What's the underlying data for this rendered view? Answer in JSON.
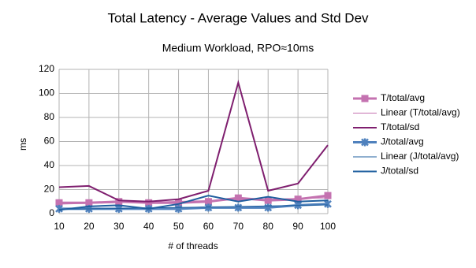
{
  "chart_data": {
    "type": "line",
    "title": "Total Latency - Average Values and Std Dev",
    "subtitle": "Medium Workload, RPO≈10ms",
    "x_label": "# of threads",
    "y_label": "ms",
    "x": [
      10,
      20,
      30,
      40,
      50,
      60,
      70,
      80,
      90,
      100
    ],
    "xlim": [
      10,
      100
    ],
    "xticks": [
      10,
      20,
      30,
      40,
      50,
      60,
      70,
      80,
      90,
      100
    ],
    "ylim": [
      0,
      120
    ],
    "yticks": [
      0,
      20,
      40,
      60,
      80,
      100,
      120
    ],
    "grid": true,
    "legend": "right",
    "series": [
      {
        "name": "T/total/avg",
        "color": "#c472b0",
        "marker": "square",
        "width": 3,
        "values": [
          9,
          9,
          10,
          9,
          9,
          10,
          13,
          11,
          12,
          15
        ]
      },
      {
        "name": "Linear (T/total/avg)",
        "color": "#c472b0",
        "marker": "none",
        "width": 1,
        "values": [
          7.9,
          8.5,
          9.1,
          9.7,
          10.2,
          10.8,
          11.4,
          12.0,
          12.6,
          13.1
        ]
      },
      {
        "name": "T/total/sd",
        "color": "#7f1f6f",
        "marker": "none",
        "width": 2,
        "values": [
          22,
          23,
          11,
          10,
          12,
          19,
          109,
          19,
          25,
          57
        ]
      },
      {
        "name": "J/total/avg",
        "color": "#4f81bd",
        "marker": "star",
        "width": 3,
        "values": [
          4,
          4,
          4,
          4,
          4,
          5,
          5,
          5,
          7,
          8
        ]
      },
      {
        "name": "Linear (J/total/avg)",
        "color": "#1f5f9f",
        "marker": "none",
        "width": 1,
        "values": [
          3.5,
          3.9,
          4.3,
          4.8,
          5.1,
          5.5,
          5.9,
          6.4,
          6.8,
          7.2
        ]
      },
      {
        "name": "J/total/sd",
        "color": "#1f5f9f",
        "marker": "none",
        "width": 2,
        "values": [
          3,
          6,
          7,
          4,
          8,
          15,
          10,
          14,
          10,
          11
        ]
      }
    ]
  }
}
